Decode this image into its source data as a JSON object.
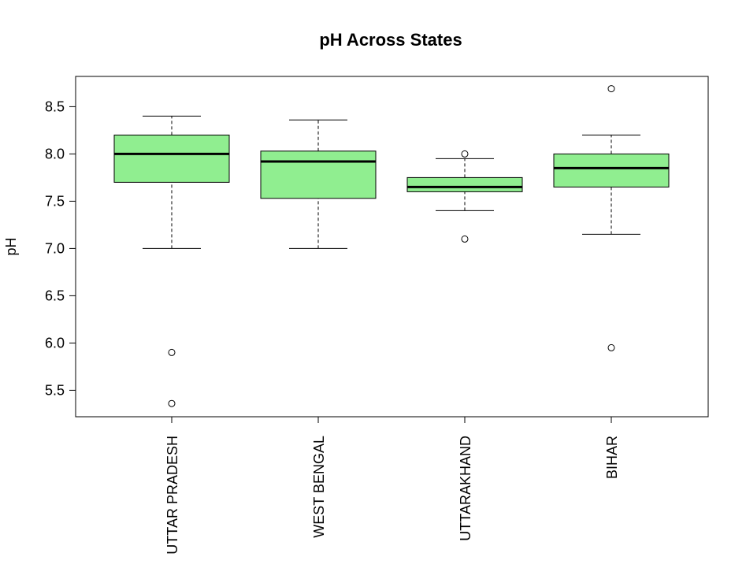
{
  "chart_data": {
    "type": "boxplot",
    "title": "pH Across States",
    "xlabel": "",
    "ylabel": "pH",
    "ylim": [
      5.22,
      8.82
    ],
    "yticks": [
      5.5,
      6.0,
      6.5,
      7.0,
      7.5,
      8.0,
      8.5
    ],
    "ytick_labels": [
      "5.5",
      "6.0",
      "6.5",
      "7.0",
      "7.5",
      "8.0",
      "8.5"
    ],
    "x_label_orientation": "vertical",
    "grid": false,
    "legend": "none",
    "box_fill": "#90ee90",
    "categories": [
      "UTTAR PRADESH",
      "WEST BENGAL",
      "UTTARAKHAND",
      "BIHAR"
    ],
    "boxes": [
      {
        "name": "UTTAR PRADESH",
        "whisker_low": 7.0,
        "q1": 7.7,
        "median": 8.0,
        "q3": 8.2,
        "whisker_high": 8.4,
        "outliers": [
          5.9,
          5.36
        ]
      },
      {
        "name": "WEST BENGAL",
        "whisker_low": 7.0,
        "q1": 7.53,
        "median": 7.92,
        "q3": 8.03,
        "whisker_high": 8.36,
        "outliers": []
      },
      {
        "name": "UTTARAKHAND",
        "whisker_low": 7.4,
        "q1": 7.6,
        "median": 7.65,
        "q3": 7.75,
        "whisker_high": 7.95,
        "outliers": [
          8.0,
          7.1
        ]
      },
      {
        "name": "BIHAR",
        "whisker_low": 7.15,
        "q1": 7.65,
        "median": 7.85,
        "q3": 8.0,
        "whisker_high": 8.2,
        "outliers": [
          8.69,
          5.95
        ]
      }
    ]
  }
}
